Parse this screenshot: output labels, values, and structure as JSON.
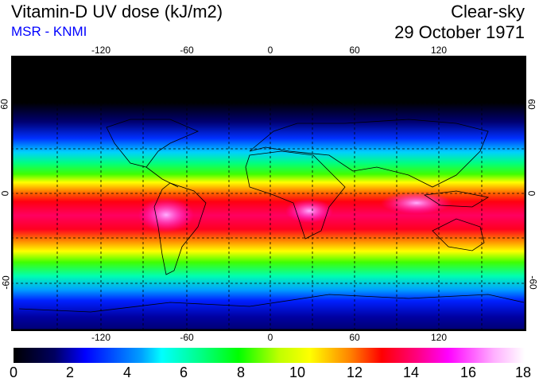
{
  "header": {
    "title": "Vitamin-D UV dose (kJ/m2)",
    "subtitle": "MSR - KNMI",
    "condition": "Clear-sky",
    "date": "29 October 1971"
  },
  "map": {
    "lon_ticks": [
      "-120",
      "-60",
      "0",
      "60",
      "120"
    ],
    "lat_ticks": [
      "60",
      "0",
      "-60"
    ]
  },
  "colorbar": {
    "labels": [
      "0",
      "2",
      "4",
      "6",
      "8",
      "10",
      "12",
      "14",
      "16",
      "18"
    ],
    "min": 0,
    "max": 18,
    "unit": "kJ/m2"
  }
}
